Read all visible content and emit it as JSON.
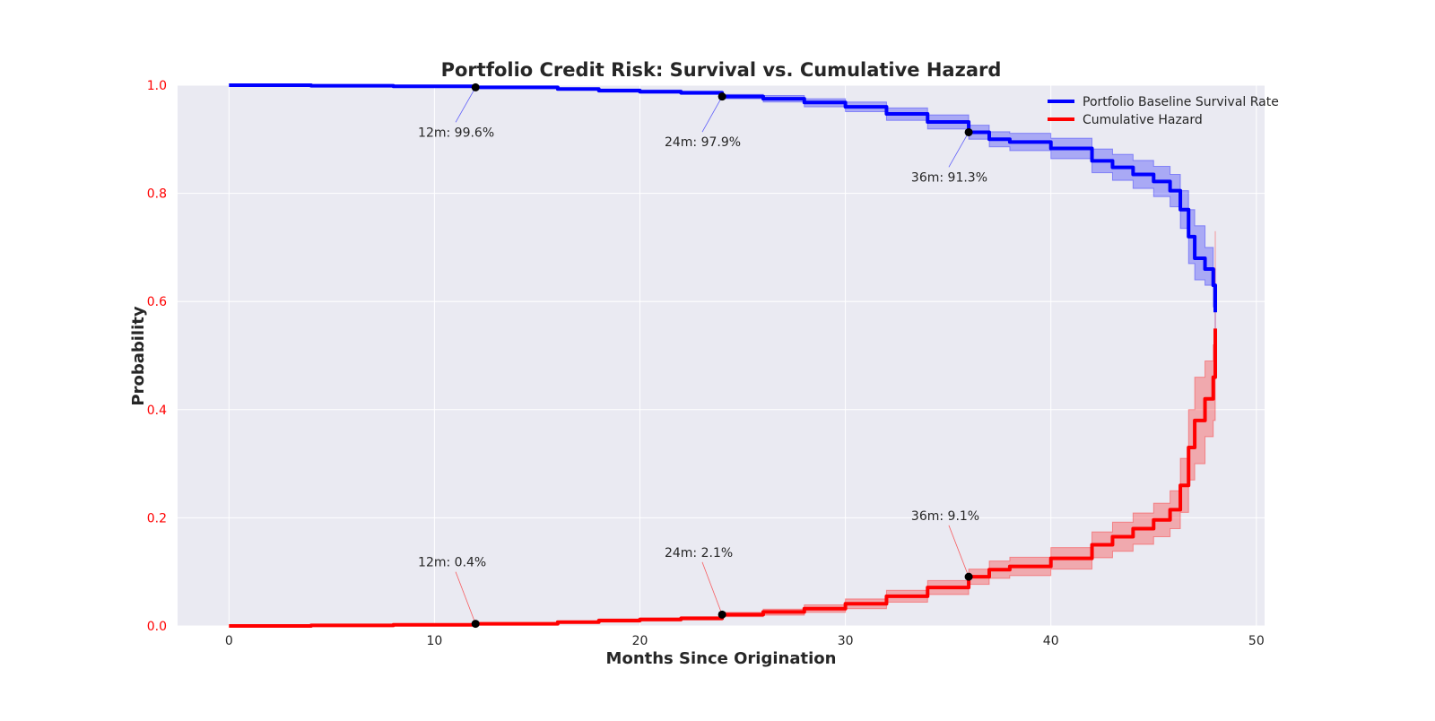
{
  "chart_data": {
    "type": "line",
    "title": "Portfolio Credit Risk: Survival vs. Cumulative Hazard",
    "xlabel": "Months Since Origination",
    "ylabel": "Probability",
    "xlim": [
      -2.5,
      50.4
    ],
    "ylim": [
      0,
      1.0
    ],
    "xticks": [
      0,
      10,
      20,
      30,
      40,
      50
    ],
    "yticks": [
      0.0,
      0.2,
      0.4,
      0.6,
      0.8,
      1.0
    ],
    "xtick_labels": [
      "0",
      "10",
      "20",
      "30",
      "40",
      "50"
    ],
    "ytick_labels": [
      "0.0",
      "0.2",
      "0.4",
      "0.6",
      "0.8",
      "1.0"
    ],
    "grid": true,
    "legend_position": "top-right",
    "series": [
      {
        "name": "Portfolio Baseline Survival Rate",
        "color": "#0000ff",
        "x": [
          0,
          4,
          8,
          12,
          16,
          18,
          20,
          22,
          24,
          26,
          28,
          30,
          32,
          34,
          36,
          37,
          38,
          40,
          42,
          43,
          44,
          45,
          45.8,
          46.3,
          46.7,
          47.0,
          47.5,
          47.9,
          48.0
        ],
        "y": [
          1.0,
          0.999,
          0.998,
          0.996,
          0.993,
          0.99,
          0.988,
          0.986,
          0.979,
          0.975,
          0.968,
          0.96,
          0.947,
          0.932,
          0.913,
          0.9,
          0.895,
          0.883,
          0.86,
          0.848,
          0.835,
          0.822,
          0.805,
          0.77,
          0.72,
          0.68,
          0.66,
          0.63,
          0.58
        ],
        "ci_lower": [
          1.0,
          0.998,
          0.997,
          0.994,
          0.991,
          0.987,
          0.985,
          0.983,
          0.975,
          0.969,
          0.96,
          0.951,
          0.935,
          0.919,
          0.9,
          0.886,
          0.879,
          0.864,
          0.838,
          0.824,
          0.809,
          0.794,
          0.775,
          0.735,
          0.67,
          0.64,
          0.63,
          0.59,
          0.53
        ],
        "ci_upper": [
          1.0,
          1.0,
          0.999,
          0.998,
          0.995,
          0.993,
          0.991,
          0.989,
          0.983,
          0.981,
          0.975,
          0.969,
          0.958,
          0.945,
          0.926,
          0.914,
          0.911,
          0.902,
          0.882,
          0.872,
          0.861,
          0.85,
          0.835,
          0.805,
          0.77,
          0.74,
          0.7,
          0.66,
          0.63
        ]
      },
      {
        "name": "Cumulative Hazard",
        "color": "#ff0000",
        "x": [
          0,
          4,
          8,
          12,
          16,
          18,
          20,
          22,
          24,
          26,
          28,
          30,
          32,
          34,
          36,
          37,
          38,
          40,
          42,
          43,
          44,
          45,
          45.8,
          46.3,
          46.7,
          47.0,
          47.5,
          47.9,
          48.0
        ],
        "y": [
          0.0,
          0.001,
          0.002,
          0.004,
          0.007,
          0.01,
          0.012,
          0.014,
          0.021,
          0.026,
          0.032,
          0.041,
          0.055,
          0.071,
          0.091,
          0.104,
          0.11,
          0.125,
          0.15,
          0.165,
          0.18,
          0.196,
          0.215,
          0.26,
          0.33,
          0.38,
          0.42,
          0.46,
          0.55
        ],
        "ci_lower": [
          0.0,
          0.0,
          0.001,
          0.002,
          0.005,
          0.007,
          0.009,
          0.011,
          0.017,
          0.02,
          0.025,
          0.032,
          0.044,
          0.058,
          0.077,
          0.088,
          0.093,
          0.105,
          0.126,
          0.138,
          0.151,
          0.165,
          0.18,
          0.21,
          0.27,
          0.3,
          0.35,
          0.38,
          0.45
        ],
        "ci_upper": [
          0.0,
          0.002,
          0.003,
          0.006,
          0.009,
          0.013,
          0.015,
          0.017,
          0.025,
          0.031,
          0.039,
          0.05,
          0.066,
          0.084,
          0.105,
          0.12,
          0.127,
          0.145,
          0.174,
          0.192,
          0.209,
          0.227,
          0.25,
          0.31,
          0.4,
          0.46,
          0.49,
          0.52,
          0.73
        ]
      }
    ],
    "annotations": [
      {
        "series": 0,
        "x": 12,
        "y": 0.996,
        "text": "12m: 99.6%",
        "text_x": 9.2,
        "text_y": 0.905
      },
      {
        "series": 0,
        "x": 24,
        "y": 0.979,
        "text": "24m: 97.9%",
        "text_x": 21.2,
        "text_y": 0.887
      },
      {
        "series": 0,
        "x": 36,
        "y": 0.913,
        "text": "36m: 91.3%",
        "text_x": 33.2,
        "text_y": 0.822
      },
      {
        "series": 1,
        "x": 12,
        "y": 0.004,
        "text": "12m: 0.4%",
        "text_x": 9.2,
        "text_y": 0.11
      },
      {
        "series": 1,
        "x": 24,
        "y": 0.021,
        "text": "24m: 2.1%",
        "text_x": 21.2,
        "text_y": 0.128
      },
      {
        "series": 1,
        "x": 36,
        "y": 0.091,
        "text": "36m: 9.1%",
        "text_x": 33.2,
        "text_y": 0.196
      }
    ]
  }
}
